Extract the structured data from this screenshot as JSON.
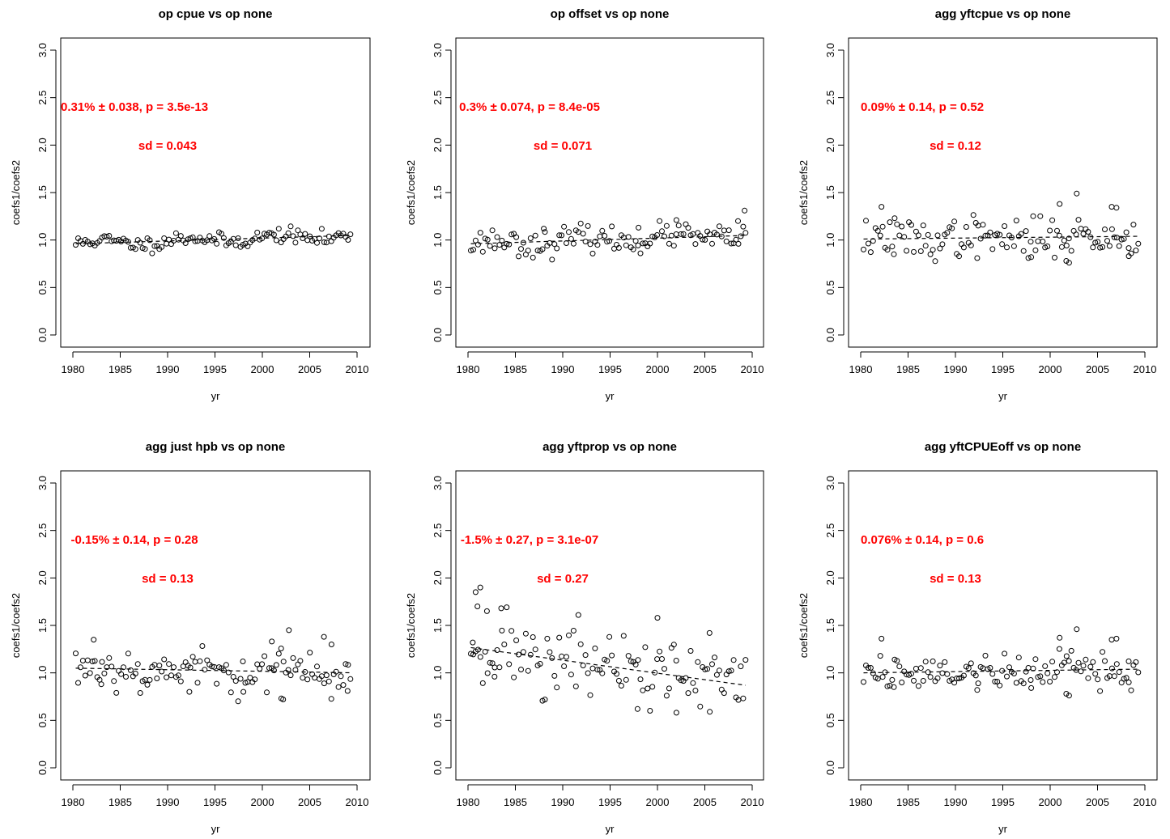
{
  "chart_data": [
    {
      "type": "scatter",
      "title": "op cpue vs op none",
      "xlabel": "yr",
      "ylabel": "coefs1/coefs2",
      "xlim": [
        1980,
        2010
      ],
      "ylim": [
        0,
        3
      ],
      "xticks": [
        1980,
        1985,
        1990,
        1995,
        2000,
        2005,
        2010
      ],
      "yticks": [
        "0.0",
        "0.5",
        "1.0",
        "1.5",
        "2.0",
        "2.5",
        "3.0"
      ],
      "annotation_trend": "0.31% ± 0.038, p = 3.5e-13",
      "annotation_sd": "sd = 0.043",
      "trend": {
        "start": 0.96,
        "end": 1.05,
        "dashed": true
      },
      "points": {
        "seed": 11,
        "sd": 0.04,
        "outliers": []
      }
    },
    {
      "type": "scatter",
      "title": "op offset vs op none",
      "xlabel": "yr",
      "ylabel": "coefs1/coefs2",
      "xlim": [
        1980,
        2010
      ],
      "ylim": [
        0,
        3
      ],
      "xticks": [
        1980,
        1985,
        1990,
        1995,
        2000,
        2005,
        2010
      ],
      "yticks": [
        "0.0",
        "0.5",
        "1.0",
        "1.5",
        "2.0",
        "2.5",
        "3.0"
      ],
      "annotation_trend": "0.3% ± 0.074, p = 8.4e-05",
      "annotation_sd": "sd = 0.071",
      "trend": {
        "start": 0.96,
        "end": 1.05,
        "dashed": true
      },
      "points": {
        "seed": 23,
        "sd": 0.065,
        "outliers": [
          [
            1988.0,
            1.12
          ],
          [
            2002.0,
            1.21
          ],
          [
            2008.5,
            1.2
          ],
          [
            2009.2,
            1.31
          ],
          [
            1998.0,
            1.13
          ]
        ]
      }
    },
    {
      "type": "scatter",
      "title": "agg yftcpue vs op none",
      "xlabel": "yr",
      "ylabel": "coefs1/coefs2",
      "xlim": [
        1980,
        2010
      ],
      "ylim": [
        0,
        3
      ],
      "xticks": [
        1980,
        1985,
        1990,
        1995,
        2000,
        2005,
        2010
      ],
      "yticks": [
        "0.0",
        "0.5",
        "1.0",
        "1.5",
        "2.0",
        "2.5",
        "3.0"
      ],
      "annotation_trend": "0.09% ± 0.14, p = 0.52",
      "annotation_sd": "sd = 0.12",
      "trend": {
        "start": 1.01,
        "end": 1.04,
        "dashed": true
      },
      "points": {
        "seed": 37,
        "sd": 0.1,
        "outliers": [
          [
            1982.2,
            1.35
          ],
          [
            2002.8,
            1.49
          ],
          [
            2001.0,
            1.38
          ],
          [
            2006.5,
            1.35
          ],
          [
            2007.0,
            1.34
          ],
          [
            2002.0,
            0.76
          ],
          [
            2001.7,
            0.78
          ],
          [
            1992.3,
            0.81
          ],
          [
            1998.0,
            0.82
          ],
          [
            1983.5,
            0.85
          ],
          [
            2008.3,
            0.83
          ]
        ]
      }
    },
    {
      "type": "scatter",
      "title": "agg just hpb vs op none",
      "xlabel": "yr",
      "ylabel": "coefs1/coefs2",
      "xlim": [
        1980,
        2010
      ],
      "ylim": [
        0,
        3
      ],
      "xticks": [
        1980,
        1985,
        1990,
        1995,
        2000,
        2005,
        2010
      ],
      "yticks": [
        "0.0",
        "0.5",
        "1.0",
        "1.5",
        "2.0",
        "2.5",
        "3.0"
      ],
      "annotation_trend": "-0.15% ± 0.14, p = 0.28",
      "annotation_sd": "sd = 0.13",
      "trend": {
        "start": 1.05,
        "end": 1.0,
        "dashed": true
      },
      "points": {
        "seed": 53,
        "sd": 0.11,
        "outliers": [
          [
            1982.2,
            1.35
          ],
          [
            2002.8,
            1.45
          ],
          [
            2001.0,
            1.33
          ],
          [
            2006.5,
            1.38
          ],
          [
            2007.3,
            1.3
          ],
          [
            2002.2,
            0.72
          ],
          [
            2002.0,
            0.73
          ],
          [
            1992.3,
            0.8
          ],
          [
            1998.0,
            0.8
          ],
          [
            2009.0,
            0.81
          ],
          [
            1983.0,
            0.88
          ]
        ]
      }
    },
    {
      "type": "scatter",
      "title": "agg yftprop vs op none",
      "xlabel": "yr",
      "ylabel": "coefs1/coefs2",
      "xlim": [
        1980,
        2010
      ],
      "ylim": [
        0,
        3
      ],
      "xticks": [
        1980,
        1985,
        1990,
        1995,
        2000,
        2005,
        2010
      ],
      "yticks": [
        "0.0",
        "0.5",
        "1.0",
        "1.5",
        "2.0",
        "2.5",
        "3.0"
      ],
      "annotation_trend": "-1.5% ± 0.27, p = 3.1e-07",
      "annotation_sd": "sd = 0.27",
      "trend": {
        "start": 1.27,
        "end": 0.86,
        "dashed": true
      },
      "points": {
        "seed": 71,
        "sd": 0.2,
        "outliers": [
          [
            1980.5,
            1.32
          ],
          [
            1980.8,
            1.85
          ],
          [
            1981.3,
            1.9
          ],
          [
            1981.0,
            1.7
          ],
          [
            1982.0,
            1.65
          ],
          [
            1983.5,
            1.68
          ],
          [
            1982.8,
            0.96
          ],
          [
            2000.0,
            1.58
          ],
          [
            2005.5,
            1.42
          ],
          [
            2002.0,
            0.58
          ],
          [
            1997.9,
            0.62
          ]
        ]
      }
    },
    {
      "type": "scatter",
      "title": "agg yftCPUEoff vs op none",
      "xlabel": "yr",
      "ylabel": "coefs1/coefs2",
      "xlim": [
        1980,
        2010
      ],
      "ylim": [
        0,
        3
      ],
      "xticks": [
        1980,
        1985,
        1990,
        1995,
        2000,
        2005,
        2010
      ],
      "yticks": [
        "0.0",
        "0.5",
        "1.0",
        "1.5",
        "2.0",
        "2.5",
        "3.0"
      ],
      "annotation_trend": "0.076% ± 0.14, p = 0.6",
      "annotation_sd": "sd = 0.13",
      "trend": {
        "start": 1.0,
        "end": 1.04,
        "dashed": true
      },
      "points": {
        "seed": 89,
        "sd": 0.1,
        "outliers": [
          [
            1982.2,
            1.36
          ],
          [
            2002.8,
            1.46
          ],
          [
            2001.0,
            1.37
          ],
          [
            2006.5,
            1.35
          ],
          [
            2007.0,
            1.36
          ],
          [
            2002.0,
            0.76
          ],
          [
            2001.7,
            0.78
          ],
          [
            1992.3,
            0.82
          ],
          [
            1998.0,
            0.84
          ],
          [
            1983.5,
            0.85
          ],
          [
            2008.3,
            0.9
          ]
        ]
      }
    }
  ]
}
